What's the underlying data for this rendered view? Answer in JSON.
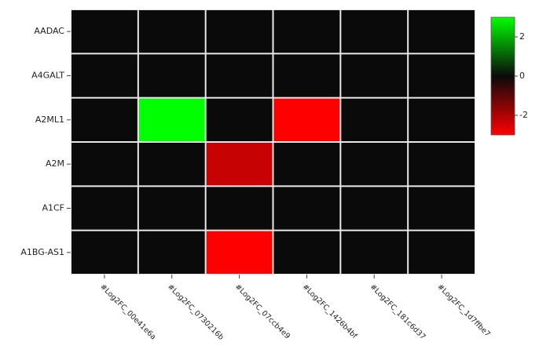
{
  "chart_data": {
    "type": "heatmap",
    "rows": [
      "AADAC",
      "A4GALT",
      "A2ML1",
      "A2M",
      "A1CF",
      "A1BG-AS1"
    ],
    "columns": [
      "#Log2FC_00e41e6a",
      "#Log2FC_0730216b",
      "#Log2FC_07ccb4e9",
      "#Log2FC_1426b4bf",
      "#Log2FC_181c6d37",
      "#Log2FC_1d7ffbe7"
    ],
    "z": [
      [
        0,
        0,
        0,
        0,
        0,
        0
      ],
      [
        0,
        0,
        0,
        0,
        0,
        0
      ],
      [
        0,
        3,
        0,
        -3,
        0,
        0
      ],
      [
        0,
        0,
        -2.3,
        0,
        0,
        0
      ],
      [
        0,
        0,
        0,
        0,
        0,
        0
      ],
      [
        0,
        0,
        -3,
        0,
        0,
        0
      ]
    ],
    "zlim": [
      -3,
      3
    ],
    "zticks": [
      2,
      0,
      -2
    ],
    "colorscale": [
      "#ff0000",
      "#0a0a0a",
      "#00ff00"
    ],
    "gap_color": "#e8e8e8"
  }
}
